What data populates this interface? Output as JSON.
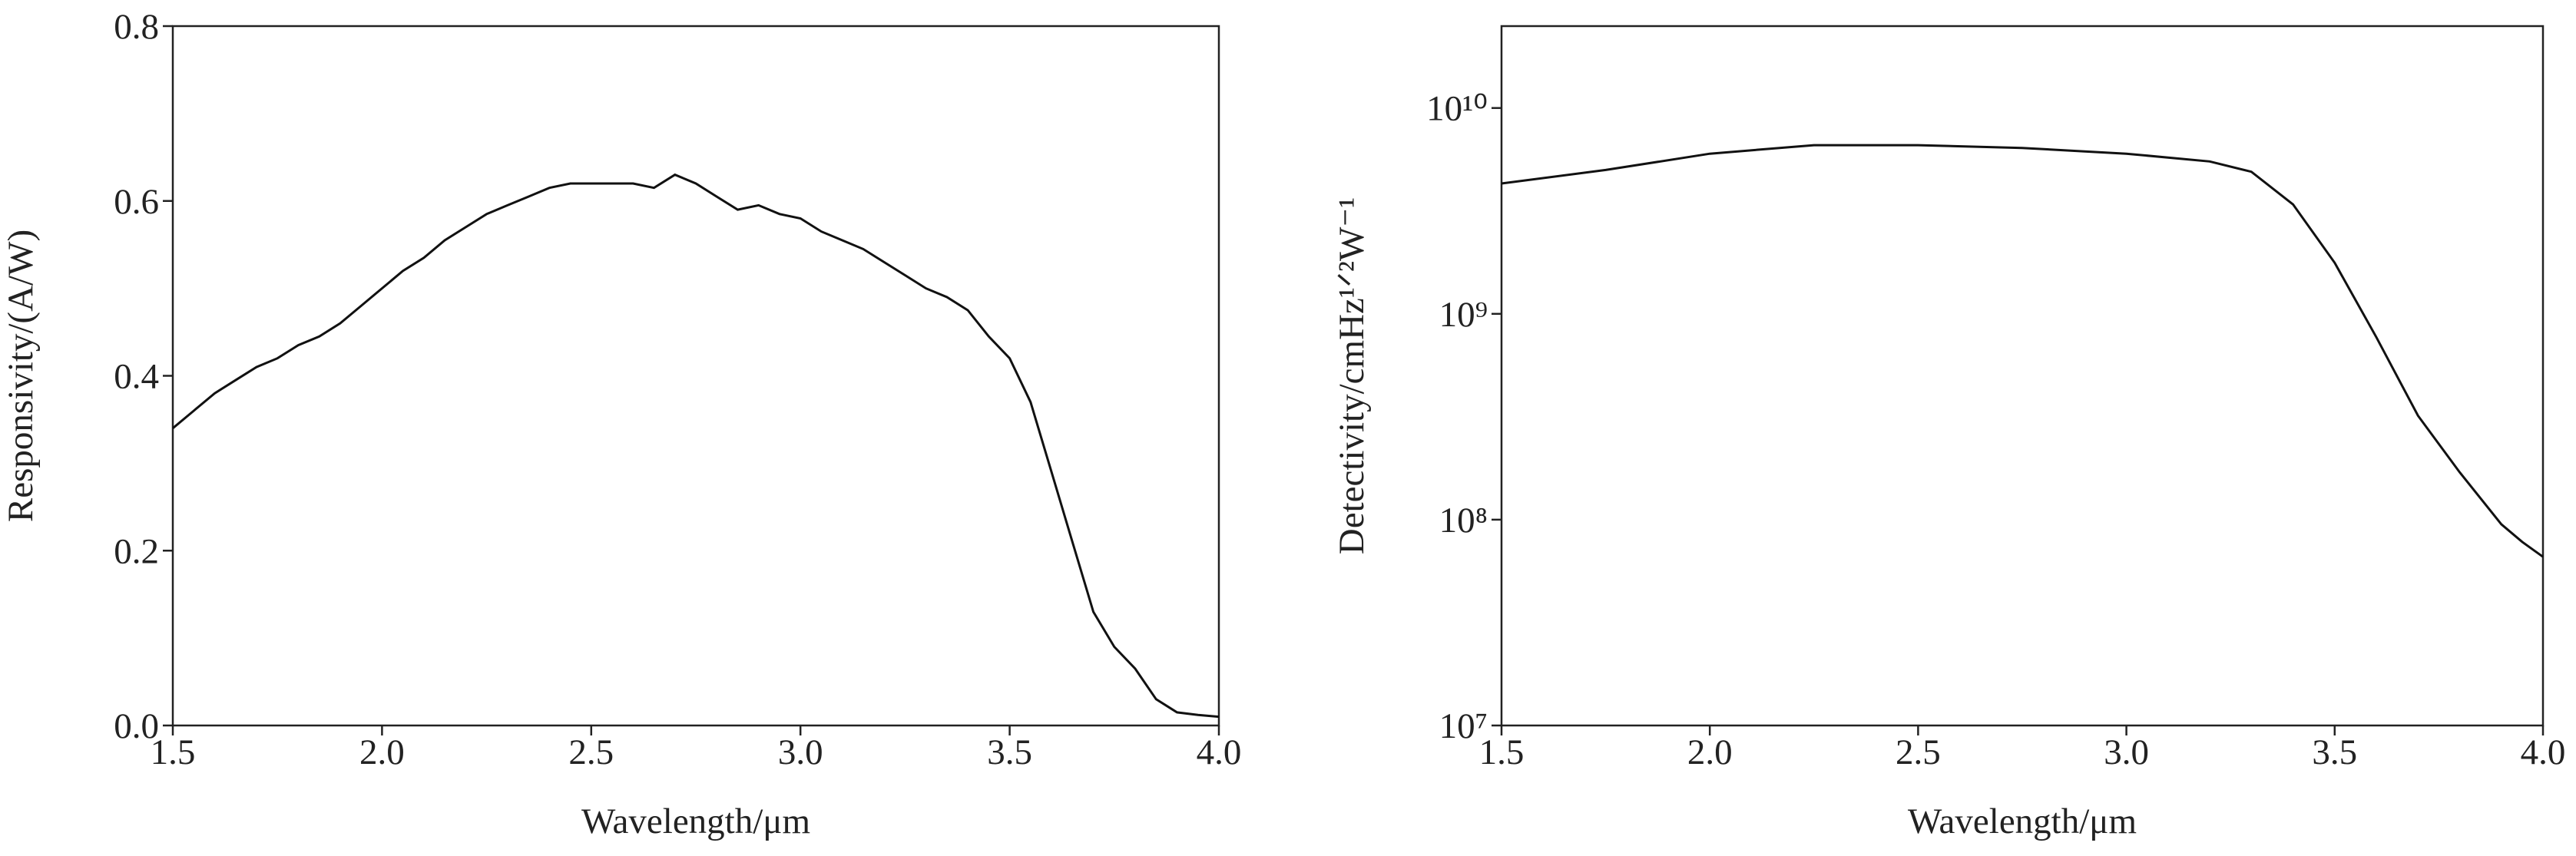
{
  "chart_data": [
    {
      "type": "line",
      "xlabel": "Wavelength/μm",
      "ylabel": "Responsivity/(A/W)",
      "color": "#111111",
      "log_y": false,
      "x": [
        1.5,
        1.55,
        1.6,
        1.65,
        1.7,
        1.75,
        1.8,
        1.85,
        1.9,
        1.95,
        2.0,
        2.05,
        2.1,
        2.15,
        2.2,
        2.25,
        2.3,
        2.35,
        2.4,
        2.45,
        2.5,
        2.55,
        2.6,
        2.65,
        2.7,
        2.75,
        2.8,
        2.85,
        2.9,
        2.95,
        3.0,
        3.05,
        3.1,
        3.15,
        3.2,
        3.25,
        3.3,
        3.35,
        3.4,
        3.45,
        3.5,
        3.55,
        3.6,
        3.65,
        3.7,
        3.75,
        3.8,
        3.85,
        3.9,
        3.95,
        4.0
      ],
      "values": [
        0.34,
        0.36,
        0.38,
        0.395,
        0.41,
        0.42,
        0.435,
        0.445,
        0.46,
        0.48,
        0.5,
        0.52,
        0.535,
        0.555,
        0.57,
        0.585,
        0.595,
        0.605,
        0.615,
        0.62,
        0.62,
        0.62,
        0.62,
        0.615,
        0.63,
        0.62,
        0.605,
        0.59,
        0.595,
        0.585,
        0.58,
        0.565,
        0.555,
        0.545,
        0.53,
        0.515,
        0.5,
        0.49,
        0.475,
        0.445,
        0.42,
        0.37,
        0.29,
        0.21,
        0.13,
        0.09,
        0.065,
        0.03,
        0.015,
        0.012,
        0.01
      ],
      "xlim": [
        1.5,
        4.0
      ],
      "xticks": [
        1.5,
        {
          "value": 2,
          "label": "2.0"
        },
        2.5,
        {
          "value": 3,
          "label": "3.0"
        },
        3.5,
        {
          "value": 4,
          "label": "4.0"
        }
      ],
      "ylim": [
        0,
        0.8
      ],
      "yticks": [
        {
          "value": 0,
          "label": "0.0"
        },
        0.2,
        0.4,
        0.6,
        0.8
      ]
    },
    {
      "type": "line",
      "xlabel": "Wavelength/μm",
      "ylabel": "Detectivity/cmHz¹ᐟ²W⁻¹",
      "color": "#111111",
      "log_y": true,
      "x": [
        1.5,
        1.75,
        2.0,
        2.25,
        2.5,
        2.75,
        3.0,
        3.2,
        3.3,
        3.4,
        3.5,
        3.6,
        3.7,
        3.8,
        3.9,
        3.95,
        4.0
      ],
      "values": [
        4300000000,
        5000000000,
        6000000000,
        6600000000,
        6600000000,
        6400000000,
        6000000000,
        5500000000,
        4900000000,
        3400000000,
        1770000000,
        770000000,
        320000000,
        170000000,
        95000000,
        78000000,
        66000000
      ],
      "xlim": [
        1.5,
        4.0
      ],
      "xticks": [
        1.5,
        {
          "value": 2,
          "label": "2.0"
        },
        2.5,
        {
          "value": 3,
          "label": "3.0"
        },
        3.5,
        {
          "value": 4,
          "label": "4.0"
        }
      ],
      "ylim": [
        10000000,
        25000000000
      ],
      "yticks": [
        {
          "value": 10000000,
          "label": "10⁷"
        },
        {
          "value": 100000000,
          "label": "10⁸"
        },
        {
          "value": 1000000000,
          "label": "10⁹"
        },
        {
          "value": 10000000000,
          "label": "10¹⁰"
        }
      ]
    }
  ]
}
